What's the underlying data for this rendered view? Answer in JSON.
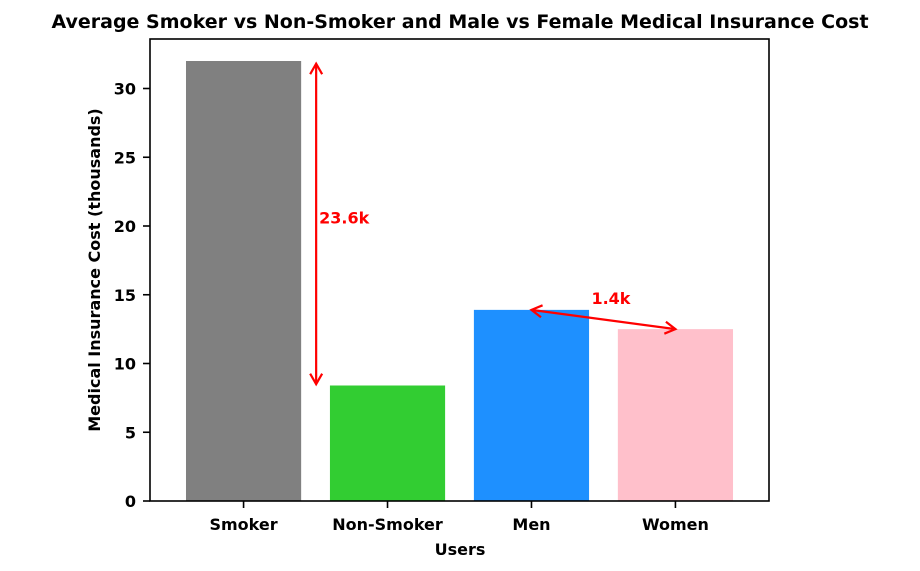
{
  "chart_data": {
    "type": "bar",
    "title": "Average Smoker vs Non-Smoker and Male vs Female Medical Insurance Cost",
    "xlabel": "Users",
    "ylabel": "Medical Insurance Cost (thousands)",
    "categories": [
      "Smoker",
      "Non-Smoker",
      "Men",
      "Women"
    ],
    "values": [
      32.0,
      8.4,
      13.9,
      12.5
    ],
    "colors": [
      "#808080",
      "#32cd32",
      "#1e90ff",
      "#ffc0cb"
    ],
    "ylim": [
      0,
      33.6
    ],
    "yticks": [
      0,
      5,
      10,
      15,
      20,
      25,
      30
    ],
    "grid": false,
    "annotations": [
      {
        "text": "23.6k",
        "color": "#ff0000",
        "from": {
          "x": "Smoker",
          "y": 31.8
        },
        "to": {
          "x": "Smoker",
          "y": 8.5
        }
      },
      {
        "text": "1.4k",
        "color": "#ff0000",
        "from": {
          "x": "Men",
          "y": 13.9
        },
        "to": {
          "x": "Women",
          "y": 12.5
        }
      }
    ]
  }
}
